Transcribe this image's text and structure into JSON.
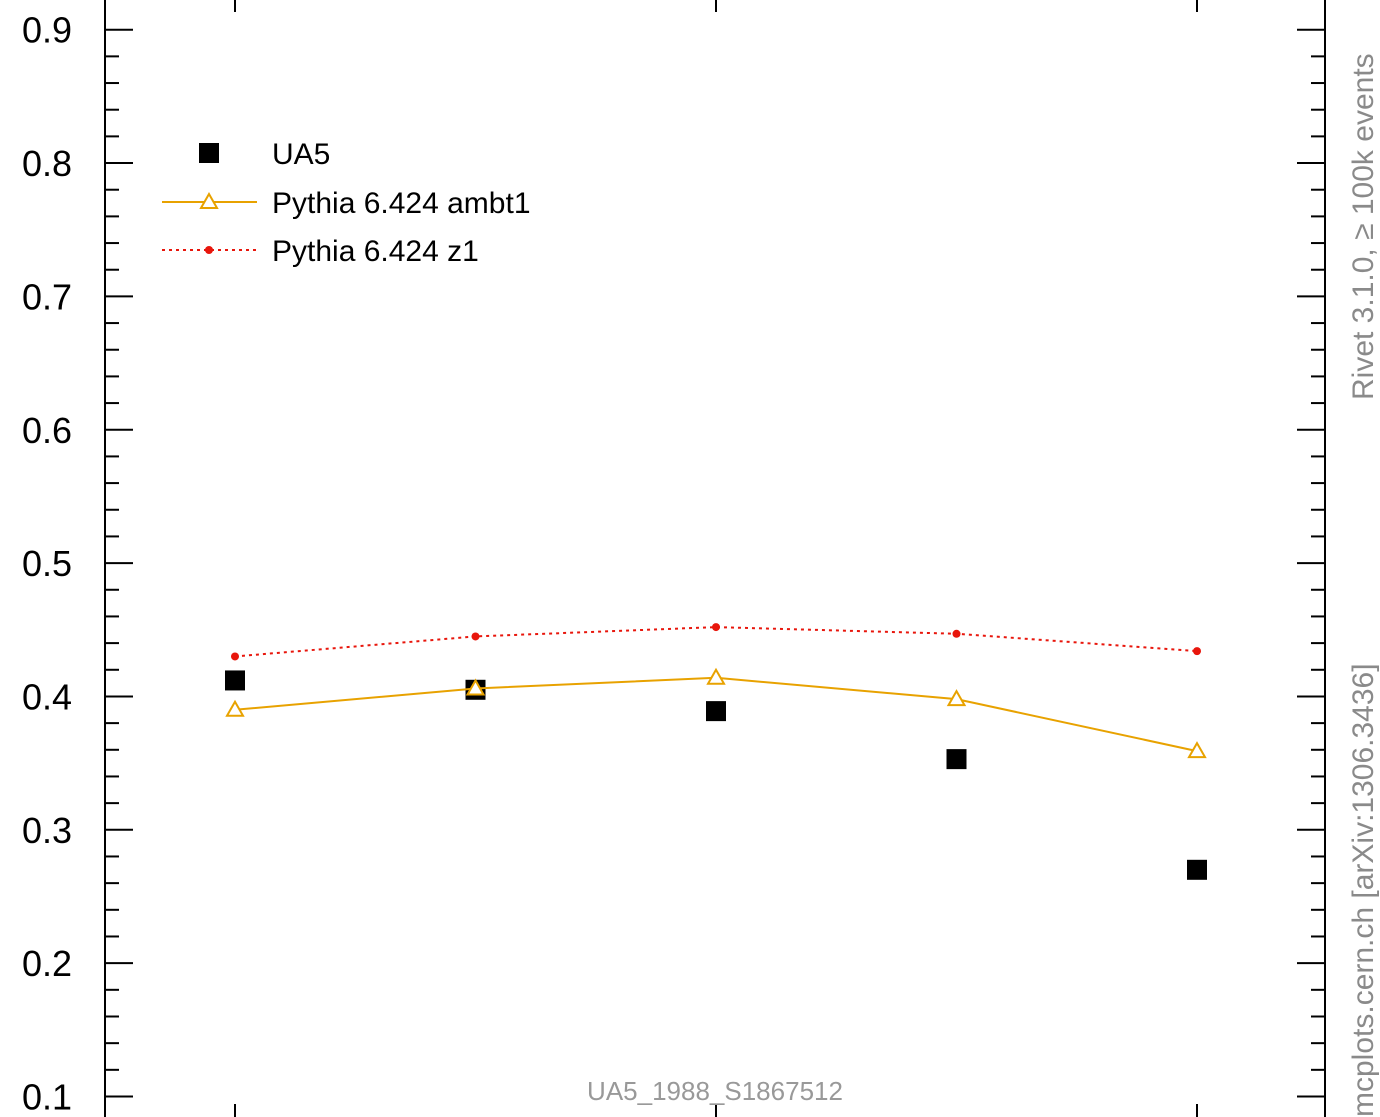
{
  "chart_data": {
    "type": "scatter",
    "title": "",
    "xlabel": "",
    "ylabel": "",
    "x": [
      1,
      2,
      3,
      4,
      5
    ],
    "ylim": [
      0.09,
      0.92
    ],
    "yticks": [
      0.1,
      0.2,
      0.3,
      0.4,
      0.5,
      0.6,
      0.7,
      0.8,
      0.9
    ],
    "ytick_labels": [
      "0.1",
      "0.2",
      "0.3",
      "0.4",
      "0.5",
      "0.6",
      "0.7",
      "0.8",
      "0.9"
    ],
    "series": [
      {
        "name": "UA5",
        "style": "square-markers",
        "color": "#000000",
        "values": [
          0.412,
          0.405,
          0.389,
          0.353,
          0.27
        ]
      },
      {
        "name": "Pythia 6.424 ambt1",
        "style": "solid-line-triangles",
        "color": "#e8a200",
        "values": [
          0.39,
          0.406,
          0.414,
          0.398,
          0.359
        ]
      },
      {
        "name": "Pythia 6.424 z1",
        "style": "dotted-line-dots",
        "color": "#e8160c",
        "values": [
          0.43,
          0.445,
          0.452,
          0.447,
          0.434
        ]
      }
    ],
    "legend_position": "top-left",
    "grid": false,
    "annotation": "UA5_1988_S1867512",
    "side_label": "Rivet 3.1.0, ≥ 100k events",
    "side_label_2": "mcplots.cern.ch [arXiv:1306.3436]"
  }
}
